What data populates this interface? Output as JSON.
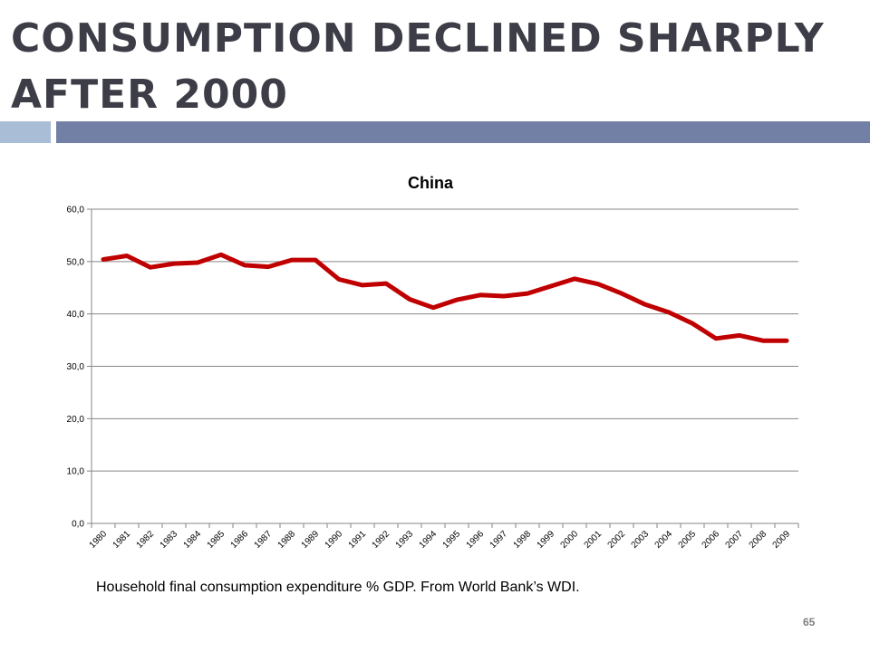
{
  "slide": {
    "title": "CONSUMPTION DECLINED SHARPLY AFTER 2000",
    "caption": "Household final consumption expenditure % GDP. From World Bank’s WDI.",
    "page_number": "65",
    "colors": {
      "title": "#3d3d47",
      "accent_light": "#a9bdd6",
      "accent_dark": "#7280a6"
    }
  },
  "chart_data": {
    "type": "line",
    "title": "China",
    "xlabel": "",
    "ylabel": "",
    "categories": [
      "1980",
      "1981",
      "1982",
      "1983",
      "1984",
      "1985",
      "1986",
      "1987",
      "1988",
      "1989",
      "1990",
      "1991",
      "1992",
      "1993",
      "1994",
      "1995",
      "1996",
      "1997",
      "1998",
      "1999",
      "2000",
      "2001",
      "2002",
      "2003",
      "2004",
      "2005",
      "2006",
      "2007",
      "2008",
      "2009"
    ],
    "series": [
      {
        "color": "#c00000",
        "values": [
          50.4,
          51.1,
          48.9,
          49.6,
          49.8,
          51.3,
          49.3,
          49.0,
          50.3,
          50.3,
          46.6,
          45.5,
          45.8,
          42.8,
          41.2,
          42.7,
          43.6,
          43.4,
          43.9,
          45.3,
          46.7,
          45.7,
          43.9,
          41.8,
          40.3,
          38.2,
          35.3,
          35.9,
          34.9,
          34.9
        ]
      }
    ],
    "ylim": [
      0,
      60
    ],
    "yticks": [
      0,
      10,
      20,
      30,
      40,
      50,
      60
    ],
    "ytick_labels": [
      "0,0",
      "10,0",
      "20,0",
      "30,0",
      "40,0",
      "50,0",
      "60,0"
    ],
    "grid": true,
    "legend": "none"
  }
}
